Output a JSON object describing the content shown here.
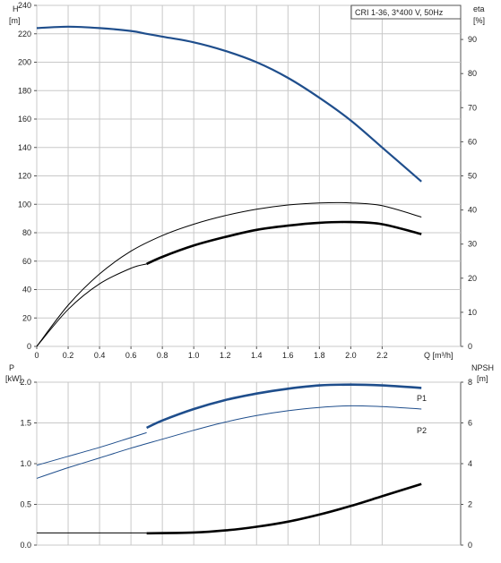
{
  "pump_label": "CRI 1-36, 3*400 V, 50Hz",
  "chart_data": [
    {
      "type": "line",
      "ylabel": "H",
      "yunit": "[m]",
      "y2label": "eta",
      "y2unit": "[%]",
      "xlabel": "Q [m³/h]",
      "xlim": [
        0,
        2.7
      ],
      "ylim": [
        0,
        240
      ],
      "y2lim": [
        0,
        100
      ],
      "grid": true,
      "x_ticks": [
        "0",
        "0.2",
        "0.4",
        "0.6",
        "0.8",
        "1.0",
        "1.2",
        "1.4",
        "1.6",
        "1.8",
        "2.0",
        "2.2"
      ],
      "y_ticks": [
        "0",
        "20",
        "40",
        "60",
        "80",
        "100",
        "120",
        "140",
        "160",
        "180",
        "200",
        "220",
        "240"
      ],
      "y2_ticks": [
        "0",
        "10",
        "20",
        "30",
        "40",
        "50",
        "60",
        "70",
        "80",
        "90"
      ],
      "series": [
        {
          "axis": "left",
          "color": "#1f4e8c",
          "style": "head",
          "x": [
            0,
            0.2,
            0.4,
            0.6,
            0.7,
            0.8,
            1.0,
            1.2,
            1.4,
            1.6,
            1.8,
            2.0,
            2.2,
            2.45
          ],
          "y": [
            224,
            225,
            224,
            222,
            220,
            218,
            214,
            208,
            200,
            189,
            175,
            159,
            140,
            116
          ]
        },
        {
          "axis": "left",
          "color": "#000000",
          "style": "thin",
          "x": [
            0,
            0.2,
            0.4,
            0.6,
            0.8,
            1.0,
            1.2,
            1.4,
            1.6,
            1.8,
            2.0,
            2.2,
            2.45
          ],
          "y": [
            0,
            29,
            51,
            67,
            78,
            86,
            92,
            96.5,
            99.5,
            101,
            101,
            99,
            91
          ]
        },
        {
          "axis": "left",
          "color": "#000000",
          "style": "thin",
          "x": [
            0,
            0.2,
            0.4,
            0.6,
            0.7
          ],
          "y": [
            0,
            26,
            44,
            55,
            58
          ]
        },
        {
          "axis": "left",
          "color": "#000000",
          "style": "thick",
          "x": [
            0.7,
            0.8,
            1.0,
            1.2,
            1.4,
            1.6,
            1.8,
            2.0,
            2.2,
            2.45
          ],
          "y": [
            58,
            63,
            71,
            77,
            82,
            85,
            87,
            87.5,
            86,
            79
          ]
        }
      ]
    },
    {
      "type": "line",
      "ylabel": "P",
      "yunit": "[kW]",
      "y2label": "NPSH",
      "y2unit": "[m]",
      "xlim": [
        0,
        2.7
      ],
      "ylim": [
        0,
        2.0
      ],
      "y2lim": [
        0,
        8
      ],
      "grid": true,
      "y_ticks": [
        "0.0",
        "0.5",
        "1.0",
        "1.5",
        "2.0"
      ],
      "y2_ticks": [
        "0",
        "2",
        "4",
        "6",
        "8"
      ],
      "series": [
        {
          "name": "P1",
          "axis": "left",
          "color": "#1f4e8c",
          "style": "thin",
          "x": [
            0,
            0.2,
            0.4,
            0.6,
            0.7
          ],
          "y": [
            0.98,
            1.09,
            1.2,
            1.32,
            1.38
          ]
        },
        {
          "name": "P1",
          "axis": "left",
          "color": "#1f4e8c",
          "style": "thick",
          "x": [
            0.7,
            0.8,
            1.0,
            1.2,
            1.4,
            1.6,
            1.8,
            2.0,
            2.2,
            2.45
          ],
          "y": [
            1.44,
            1.53,
            1.67,
            1.78,
            1.86,
            1.92,
            1.96,
            1.97,
            1.96,
            1.93
          ]
        },
        {
          "name": "P2",
          "axis": "left",
          "color": "#1f4e8c",
          "style": "thin",
          "x": [
            0,
            0.2,
            0.4,
            0.6,
            0.8,
            1.0,
            1.2,
            1.4,
            1.6,
            1.8,
            2.0,
            2.2,
            2.45
          ],
          "y": [
            0.82,
            0.95,
            1.07,
            1.19,
            1.3,
            1.41,
            1.51,
            1.59,
            1.65,
            1.69,
            1.71,
            1.7,
            1.67
          ]
        },
        {
          "axis": "right",
          "color": "#000000",
          "style": "thin",
          "x": [
            0,
            0.7
          ],
          "y": [
            0.6,
            0.6
          ]
        },
        {
          "axis": "right",
          "color": "#000000",
          "style": "thick",
          "x": [
            0.7,
            1.0,
            1.2,
            1.4,
            1.6,
            1.8,
            2.0,
            2.2,
            2.45
          ],
          "y": [
            0.58,
            0.62,
            0.72,
            0.9,
            1.15,
            1.5,
            1.92,
            2.4,
            3.0
          ]
        }
      ],
      "series_labels": [
        "P1",
        "P2"
      ]
    }
  ]
}
